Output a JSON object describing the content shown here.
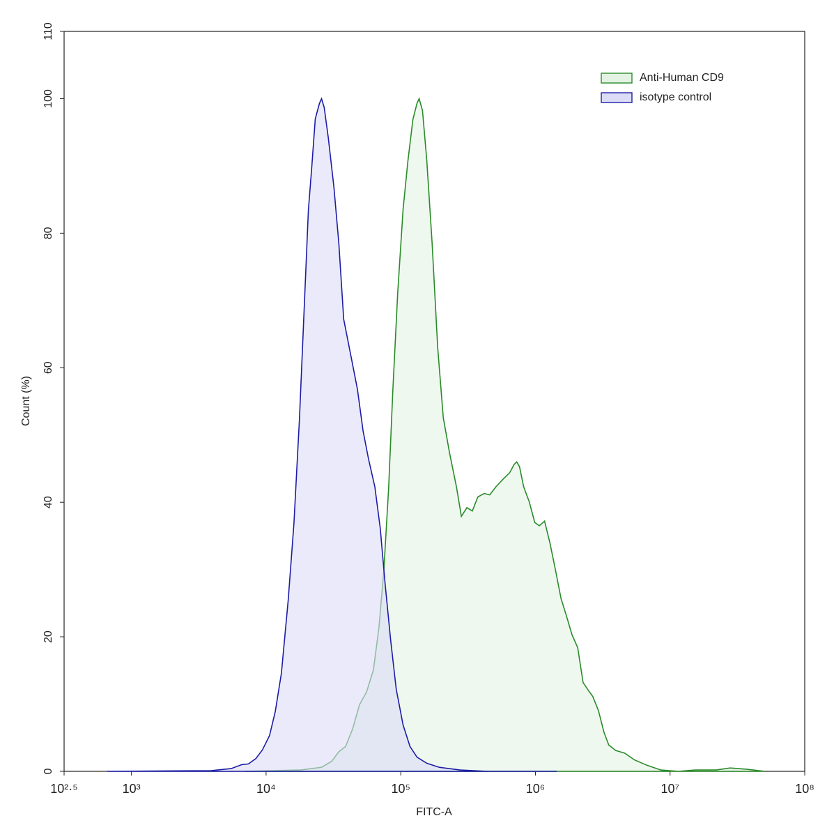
{
  "chart_data": {
    "type": "histogram-overlay",
    "xlabel": "FITC-A",
    "ylabel": "Count  (%)",
    "xscale": "log",
    "xlim": [
      316.23,
      100000000
    ],
    "ylim": [
      0,
      110
    ],
    "xticks": [
      {
        "value": 316.23,
        "label": "10²·⁵"
      },
      {
        "value": 1000,
        "label": "10³"
      },
      {
        "value": 10000,
        "label": "10⁴"
      },
      {
        "value": 100000,
        "label": "10⁵"
      },
      {
        "value": 1000000,
        "label": "10⁶"
      },
      {
        "value": 10000000,
        "label": "10⁷"
      },
      {
        "value": 100000000,
        "label": "10⁸"
      }
    ],
    "yticks": [
      0,
      20,
      40,
      60,
      80,
      100,
      110
    ],
    "legend": "upper right",
    "series": [
      {
        "name": "Anti-Human CD9",
        "color": "#2a8a2a",
        "fill": "#e3f3e3",
        "x": [
          7000,
          18100,
          25800,
          30800,
          34700,
          39000,
          43900,
          49400,
          55700,
          62700,
          68900,
          74800,
          81300,
          87300,
          94900,
          104000,
          113000,
          123000,
          132000,
          137000,
          145000,
          156000,
          171000,
          188000,
          207000,
          230000,
          259000,
          282000,
          310000,
          340000,
          374000,
          417000,
          458000,
          509000,
          573000,
          645000,
          693000,
          726000,
          762000,
          818000,
          899000,
          989000,
          1070000,
          1170000,
          1280000,
          1410000,
          1550000,
          1700000,
          1870000,
          2060000,
          2260000,
          2460000,
          2670000,
          2940000,
          3230000,
          3510000,
          3950000,
          4610000,
          5440000,
          6730000,
          8530000,
          11500000,
          15400000,
          22000000,
          27900000,
          37400000,
          50400000
        ],
        "values": [
          0,
          0.2,
          0.6,
          1.5,
          2.9,
          3.7,
          6.3,
          9.9,
          11.8,
          15.1,
          21.4,
          29.7,
          42.1,
          56.6,
          71.1,
          83.5,
          90.7,
          96.9,
          99.3,
          100,
          98.2,
          90.9,
          78.5,
          63.0,
          52.6,
          47.4,
          42.3,
          37.9,
          39.2,
          38.7,
          40.8,
          41.3,
          41.1,
          42.3,
          43.4,
          44.4,
          45.6,
          46.0,
          45.3,
          42.3,
          40.1,
          37.0,
          36.5,
          37.2,
          34.0,
          29.9,
          25.7,
          23.1,
          20.3,
          18.4,
          13.2,
          12.1,
          11.1,
          9.0,
          5.8,
          3.9,
          3.1,
          2.7,
          1.7,
          0.9,
          0.2,
          0,
          0.2,
          0.2,
          0.5,
          0.3,
          0
        ]
      },
      {
        "name": "isotype control",
        "color": "#1c1ca6",
        "fill": "#dcdcf6",
        "x": [
          660,
          3900,
          5500,
          6600,
          7400,
          8400,
          9400,
          10600,
          11700,
          13000,
          14600,
          16100,
          17700,
          19400,
          20600,
          21800,
          23200,
          24900,
          25800,
          27000,
          29000,
          31900,
          34700,
          37700,
          42400,
          47700,
          52500,
          57700,
          64200,
          70500,
          76600,
          84200,
          92600,
          104000,
          117000,
          132000,
          156000,
          193000,
          275000,
          442000,
          1440000
        ],
        "values": [
          0,
          0.1,
          0.4,
          1.0,
          1.1,
          1.9,
          3.2,
          5.3,
          8.9,
          14.6,
          25.5,
          36.9,
          52.4,
          71.0,
          83.4,
          89.6,
          97.0,
          99.3,
          100,
          98.7,
          94.1,
          86.8,
          78.5,
          67.2,
          62.0,
          56.8,
          50.6,
          46.4,
          42.3,
          36.1,
          27.8,
          19.5,
          12.2,
          6.9,
          3.7,
          2.1,
          1.2,
          0.6,
          0.2,
          0,
          0
        ]
      }
    ]
  }
}
